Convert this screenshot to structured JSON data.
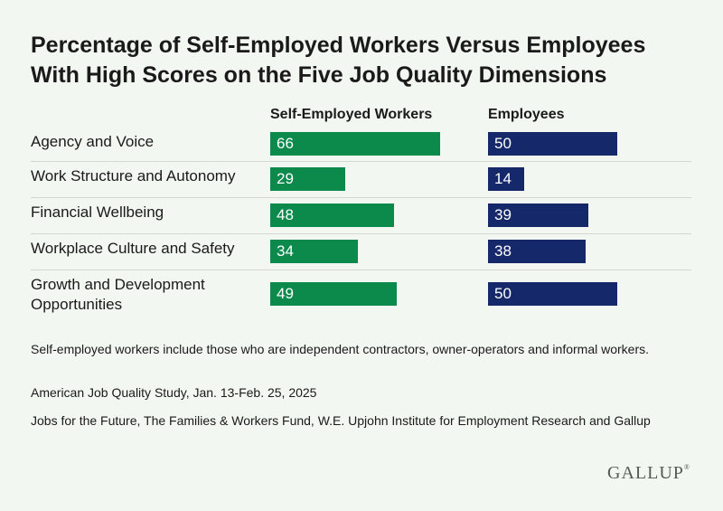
{
  "chart_data": {
    "type": "bar",
    "title": "Percentage of Self-Employed Workers Versus Employees With High Scores on the Five Job Quality Dimensions",
    "categories": [
      "Agency and Voice",
      "Work Structure and Autonomy",
      "Financial Wellbeing",
      "Workplace Culture and Safety",
      "Growth and Development Opportunities"
    ],
    "series": [
      {
        "name": "Self-Employed Workers",
        "values": [
          66,
          29,
          48,
          34,
          49
        ],
        "color": "#0c8a4c"
      },
      {
        "name": "Employees",
        "values": [
          50,
          14,
          39,
          38,
          50
        ],
        "color": "#15296a"
      }
    ],
    "xlim": [
      0,
      100
    ],
    "grid": false,
    "legend": "column headers above bars"
  },
  "notes": [
    "Self-employed workers include those who are independent contractors, owner-operators and informal workers.",
    "American Job Quality Study, Jan. 13-Feb. 25, 2025",
    "Jobs for the Future, The Families & Workers Fund, W.E. Upjohn Institute for Employment Research and Gallup"
  ],
  "logo": {
    "text": "GALLUP",
    "mark": "®"
  }
}
